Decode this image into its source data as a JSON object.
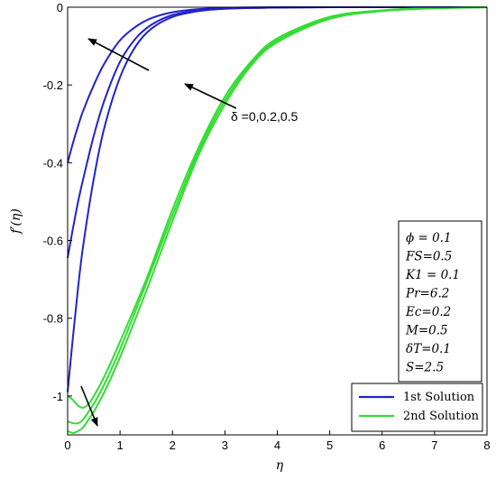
{
  "chart_data": {
    "type": "line",
    "xlabel": "η",
    "ylabel": "f′(η)",
    "xlim": [
      0,
      8
    ],
    "ylim": [
      -1.1,
      0
    ],
    "x_ticks": [
      "0",
      "1",
      "2",
      "3",
      "4",
      "5",
      "6",
      "7",
      "8"
    ],
    "y_ticks": [
      "0",
      "-0.2",
      "-0.4",
      "-0.6",
      "-0.8",
      "-1"
    ],
    "grid": false,
    "legend_position": "bottom-right",
    "colors": {
      "first": "#2222cc",
      "second": "#33dd33"
    },
    "series": [
      {
        "name": "1st Solution",
        "color": "#2222cc",
        "points": [
          [
            0,
            -0.99
          ],
          [
            0.1,
            -0.85
          ],
          [
            0.2,
            -0.72
          ],
          [
            0.3,
            -0.61
          ],
          [
            0.5,
            -0.44
          ],
          [
            0.7,
            -0.31
          ],
          [
            1.0,
            -0.18
          ],
          [
            1.3,
            -0.1
          ],
          [
            1.6,
            -0.055
          ],
          [
            2.0,
            -0.025
          ],
          [
            2.5,
            -0.01
          ],
          [
            3.0,
            -0.004
          ],
          [
            4,
            -0.001
          ],
          [
            5,
            0
          ],
          [
            8,
            0
          ]
        ]
      },
      {
        "name": "1st Solution",
        "color": "#2222cc",
        "points": [
          [
            0,
            -0.645
          ],
          [
            0.1,
            -0.57
          ],
          [
            0.2,
            -0.5
          ],
          [
            0.3,
            -0.44
          ],
          [
            0.5,
            -0.33
          ],
          [
            0.7,
            -0.24
          ],
          [
            1.0,
            -0.14
          ],
          [
            1.3,
            -0.08
          ],
          [
            1.6,
            -0.045
          ],
          [
            2.0,
            -0.02
          ],
          [
            2.5,
            -0.008
          ],
          [
            3.0,
            -0.003
          ],
          [
            4,
            -0.001
          ],
          [
            5,
            0
          ],
          [
            8,
            0
          ]
        ]
      },
      {
        "name": "1st Solution",
        "color": "#2222cc",
        "points": [
          [
            0,
            -0.4
          ],
          [
            0.1,
            -0.35
          ],
          [
            0.2,
            -0.305
          ],
          [
            0.3,
            -0.265
          ],
          [
            0.5,
            -0.2
          ],
          [
            0.7,
            -0.145
          ],
          [
            1.0,
            -0.085
          ],
          [
            1.3,
            -0.05
          ],
          [
            1.6,
            -0.028
          ],
          [
            2.0,
            -0.013
          ],
          [
            2.5,
            -0.005
          ],
          [
            3.0,
            -0.002
          ],
          [
            4,
            0
          ],
          [
            8,
            0
          ]
        ]
      },
      {
        "name": "2nd Solution",
        "color": "#33dd33",
        "points": [
          [
            0,
            -1.0
          ],
          [
            0.1,
            -1.01
          ],
          [
            0.2,
            -1.025
          ],
          [
            0.3,
            -1.03
          ],
          [
            0.4,
            -1.02
          ],
          [
            0.5,
            -1.0
          ],
          [
            0.7,
            -0.95
          ],
          [
            1.0,
            -0.86
          ],
          [
            1.5,
            -0.7
          ],
          [
            2.0,
            -0.52
          ],
          [
            2.5,
            -0.36
          ],
          [
            3.0,
            -0.23
          ],
          [
            3.5,
            -0.14
          ],
          [
            4.0,
            -0.08
          ],
          [
            5.0,
            -0.025
          ],
          [
            6.0,
            -0.008
          ],
          [
            7.0,
            -0.002
          ],
          [
            8.0,
            0
          ]
        ]
      },
      {
        "name": "2nd Solution",
        "color": "#33dd33",
        "points": [
          [
            0,
            -1.065
          ],
          [
            0.1,
            -1.07
          ],
          [
            0.2,
            -1.07
          ],
          [
            0.3,
            -1.06
          ],
          [
            0.4,
            -1.04
          ],
          [
            0.5,
            -1.02
          ],
          [
            0.7,
            -0.97
          ],
          [
            1.0,
            -0.88
          ],
          [
            1.5,
            -0.71
          ],
          [
            2.0,
            -0.535
          ],
          [
            2.5,
            -0.37
          ],
          [
            3.0,
            -0.24
          ],
          [
            3.5,
            -0.145
          ],
          [
            4.0,
            -0.085
          ],
          [
            5.0,
            -0.027
          ],
          [
            6.0,
            -0.009
          ],
          [
            7.0,
            -0.002
          ],
          [
            8.0,
            0
          ]
        ]
      },
      {
        "name": "2nd Solution",
        "color": "#33dd33",
        "points": [
          [
            0,
            -1.09
          ],
          [
            0.1,
            -1.095
          ],
          [
            0.2,
            -1.09
          ],
          [
            0.3,
            -1.08
          ],
          [
            0.4,
            -1.06
          ],
          [
            0.5,
            -1.04
          ],
          [
            0.7,
            -0.99
          ],
          [
            1.0,
            -0.9
          ],
          [
            1.5,
            -0.73
          ],
          [
            2.0,
            -0.55
          ],
          [
            2.5,
            -0.38
          ],
          [
            3.0,
            -0.25
          ],
          [
            3.5,
            -0.15
          ],
          [
            4.0,
            -0.09
          ],
          [
            5.0,
            -0.03
          ],
          [
            6.0,
            -0.01
          ],
          [
            7.0,
            -0.003
          ],
          [
            8.0,
            0
          ]
        ]
      }
    ],
    "annotation": {
      "text": "δ =0,0.2,0.5"
    },
    "parameters": [
      "ϕ = 0.1",
      "FS=0.5",
      "K1 = 0.1",
      "Pr=6.2",
      "Ec=0.2",
      "M=0.5",
      "δT=0.1",
      "S=2.5"
    ],
    "legend": [
      {
        "label": "1st Solution",
        "color": "#2222cc"
      },
      {
        "label": "2nd Solution",
        "color": "#33dd33"
      }
    ]
  }
}
